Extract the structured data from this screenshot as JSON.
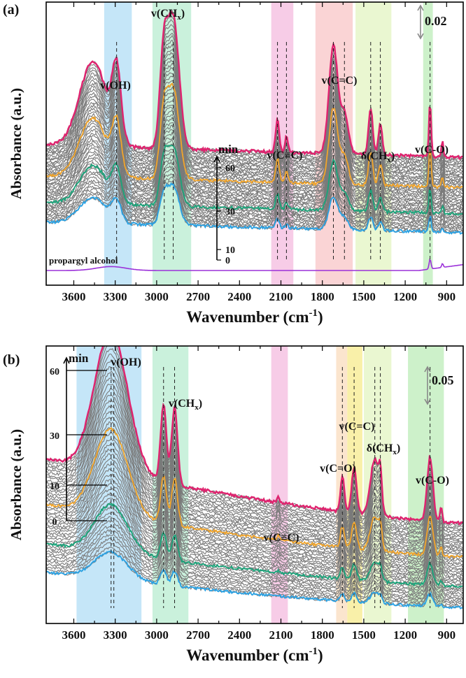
{
  "chart_data": [
    {
      "type": "line",
      "panel_label": "(a)",
      "title": "",
      "xlabel": "Wavenumber (cm-1)",
      "xlabel_parts": {
        "main": "Wavenumber (cm",
        "sup": "-1",
        "close": ")"
      },
      "ylabel": "Absorbance (a.u.)",
      "xlim": [
        3800,
        780
      ],
      "xticks": [
        "3600",
        "3300",
        "3000",
        "2700",
        "2400",
        "2100",
        "1800",
        "1500",
        "1200",
        "900"
      ],
      "scale_bar": "0.02",
      "bands": [
        {
          "name": "v(OH)",
          "from": 3380,
          "to": 3180,
          "color": "#bfe3f7"
        },
        {
          "name": "v(CHx)",
          "from": 3030,
          "to": 2750,
          "color": "#c4efd8"
        },
        {
          "name": "v(C≡C)",
          "from": 2170,
          "to": 2010,
          "color": "#f6c6e4"
        },
        {
          "name": "v(C=C)",
          "from": 1850,
          "to": 1580,
          "color": "#f9cfd0"
        },
        {
          "name": "δ(CHx)",
          "from": 1560,
          "to": 1300,
          "color": "#e8f6cc"
        },
        {
          "name": "v(C-O)",
          "from": 1070,
          "to": 1000,
          "color": "#c8f0c4"
        }
      ],
      "annotations": [
        {
          "text": "v(OH)",
          "at": 3260
        },
        {
          "text": "v(CHx)",
          "at": 2880
        },
        {
          "text": "v(C≡C)",
          "at": 2100
        },
        {
          "text": "v(C=C)",
          "at": 1700
        },
        {
          "text": "δ(CHx)",
          "at": 1420
        },
        {
          "text": "v(C-O)",
          "at": 1020
        }
      ],
      "time_axis": {
        "label": "min",
        "ticks": [
          "60",
          "30",
          "10",
          "0"
        ]
      },
      "reference_label": "propargyl alcohol",
      "series": [
        {
          "name": "0 min",
          "color": "#29a3e6"
        },
        {
          "name": "10 min",
          "color": "#19a57a"
        },
        {
          "name": "30 min",
          "color": "#f2a52a"
        },
        {
          "name": "60 min",
          "color": "#e0236f"
        },
        {
          "name": "propargyl alcohol",
          "color": "#9b30d9"
        }
      ]
    },
    {
      "type": "line",
      "panel_label": "(b)",
      "title": "",
      "xlabel": "Wavenumber (cm-1)",
      "xlabel_parts": {
        "main": "Wavenumber (cm",
        "sup": "-1",
        "close": ")"
      },
      "ylabel": "Absorbance (a.u.)",
      "xlim": [
        3800,
        780
      ],
      "xticks": [
        "3600",
        "3300",
        "3000",
        "2700",
        "2400",
        "2100",
        "1800",
        "1500",
        "1200",
        "900"
      ],
      "scale_bar": "0.05",
      "bands": [
        {
          "name": "v(OH)",
          "from": 3580,
          "to": 3110,
          "color": "#bfe3f7"
        },
        {
          "name": "v(CHx)",
          "from": 3030,
          "to": 2770,
          "color": "#c4efd8"
        },
        {
          "name": "v(C≡C)",
          "from": 2170,
          "to": 2050,
          "color": "#f6c6e4"
        },
        {
          "name": "v(C=O)",
          "from": 1700,
          "to": 1620,
          "color": "#fbe2c9"
        },
        {
          "name": "v(C=C)",
          "from": 1620,
          "to": 1510,
          "color": "#f8eea0"
        },
        {
          "name": "δ(CHx)",
          "from": 1500,
          "to": 1300,
          "color": "#e8f6cc"
        },
        {
          "name": "v(C-O)",
          "from": 1180,
          "to": 920,
          "color": "#c8f0c4"
        }
      ],
      "annotations": [
        {
          "text": "v(OH)",
          "at": 3330
        },
        {
          "text": "v(CHx)",
          "at": 2890
        },
        {
          "text": "v(C≡C)",
          "at": 2100
        },
        {
          "text": "v(C=O)",
          "at": 1650
        },
        {
          "text": "v(C=C)",
          "at": 1570
        },
        {
          "text": "δ(CHx)",
          "at": 1420
        },
        {
          "text": "v(C-O)",
          "at": 1020
        }
      ],
      "time_axis": {
        "label": "min",
        "ticks": [
          "60",
          "30",
          "10",
          "0"
        ]
      },
      "series": [
        {
          "name": "0 min",
          "color": "#29a3e6"
        },
        {
          "name": "10 min",
          "color": "#19a57a"
        },
        {
          "name": "30 min",
          "color": "#f2a52a"
        },
        {
          "name": "60 min",
          "color": "#e0236f"
        }
      ]
    }
  ]
}
